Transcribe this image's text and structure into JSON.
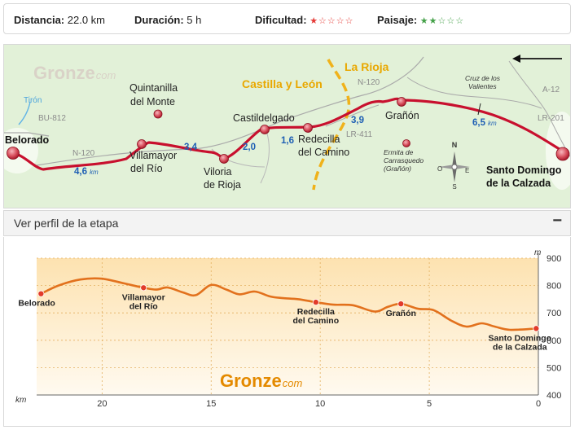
{
  "stats": {
    "distance_label": "Distancia:",
    "distance_value": "22.0 km",
    "duration_label": "Duración:",
    "duration_value": "5 h",
    "difficulty_label": "Dificultad:",
    "difficulty_stars": "★☆☆☆☆",
    "difficulty_color": "#e53935",
    "landscape_label": "Paisaje:",
    "landscape_stars": "★★☆☆☆",
    "landscape_color": "#43a047"
  },
  "map": {
    "towns": {
      "belorado": "Belorado",
      "villamayor": [
        "Villamayor",
        "del Río"
      ],
      "viloria": [
        "Viloria",
        "de Rioja"
      ],
      "castildelgado": "Castildelgado",
      "redecilla": [
        "Redecilla",
        "del Camino"
      ],
      "granon": "Grañón",
      "santo_domingo": [
        "Santo Domingo",
        "de la Calzada"
      ],
      "quintanilla": [
        "Quintanilla",
        "del Monte"
      ],
      "ermita": [
        "Ermita de",
        "Carrasquedo",
        "(Grañón)"
      ],
      "cruz": [
        "Cruz de los",
        "Valientes"
      ]
    },
    "regions": {
      "castilla": "Castilla y León",
      "rioja": "La Rioja"
    },
    "roads": {
      "bu812": "BU-812",
      "n120a": "N-120",
      "n120b": "N-120",
      "lr411": "LR-411",
      "a12": "A-12",
      "lr201": "LR-201"
    },
    "river": "Tirón",
    "distances": {
      "d1": "4,6",
      "d2": "3,4",
      "d3": "2,0",
      "d4": "1,6",
      "d5": "3,9",
      "d6": "6,5",
      "unit": "km"
    },
    "logo_main": "Gronze",
    "logo_suffix": "com",
    "compass": {
      "n": "N",
      "s": "S",
      "e": "E",
      "o": "O"
    },
    "route_color": "#c8102e"
  },
  "profile_bar": {
    "title": "Ver perfil de la etapa",
    "toggle": "−"
  },
  "profile": {
    "y_unit": "m",
    "x_unit": "km",
    "logo_main": "Gronze",
    "logo_suffix": "com",
    "y_ticks": [
      "900",
      "800",
      "700",
      "600",
      "500",
      "400"
    ],
    "x_ticks": [
      "20",
      "15",
      "10",
      "5",
      "0"
    ],
    "towns": [
      {
        "lines": [
          "Belorado"
        ],
        "km": 22.8,
        "alt": 770
      },
      {
        "lines": [
          "Villamayor",
          "del Río"
        ],
        "km": 18.1,
        "alt": 792
      },
      {
        "lines": [
          "Redecilla",
          "del Camino"
        ],
        "km": 10.2,
        "alt": 739
      },
      {
        "lines": [
          "Grañón"
        ],
        "km": 6.3,
        "alt": 733
      },
      {
        "lines": [
          "Santo Domingo",
          "de la Calzada"
        ],
        "km": 0.1,
        "alt": 643
      }
    ]
  },
  "chart_data": {
    "type": "area",
    "xlabel": "km",
    "ylabel": "m",
    "xlim": [
      23,
      0
    ],
    "ylim": [
      400,
      900
    ],
    "x": [
      22.8,
      22,
      21,
      20,
      19,
      18.1,
      17.5,
      17,
      16.3,
      15.7,
      15,
      14.3,
      13.7,
      13,
      12.3,
      11.7,
      11,
      10.2,
      9.4,
      8.5,
      7.5,
      6.9,
      6.3,
      5.5,
      4.8,
      4,
      3.3,
      2.6,
      2,
      1.3,
      0.1
    ],
    "series": [
      {
        "values": [
          770,
          800,
          822,
          825,
          808,
          792,
          785,
          793,
          775,
          765,
          802,
          785,
          768,
          778,
          760,
          754,
          750,
          739,
          730,
          728,
          705,
          722,
          733,
          715,
          710,
          672,
          650,
          662,
          650,
          638,
          643
        ]
      }
    ]
  }
}
